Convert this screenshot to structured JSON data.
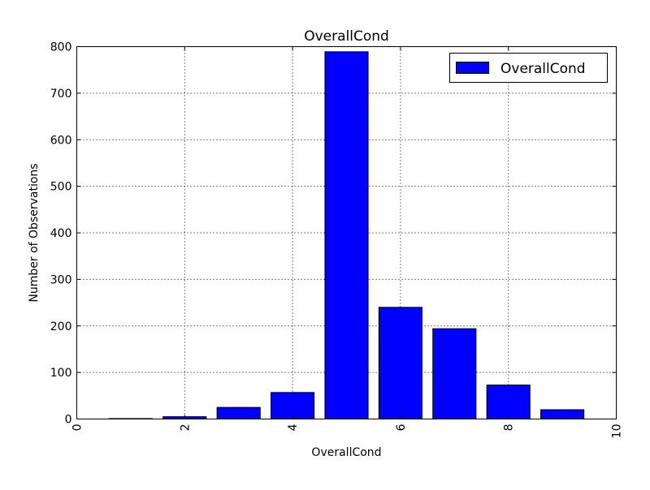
{
  "chart_data": {
    "type": "bar",
    "title": "OverallCond",
    "xlabel": "OverallCond",
    "ylabel": "Number of Observations",
    "x": [
      1,
      2,
      3,
      4,
      5,
      6,
      7,
      8,
      9
    ],
    "values": [
      1,
      5,
      25,
      57,
      789,
      240,
      194,
      73,
      20
    ],
    "xlim": [
      0,
      10
    ],
    "ylim": [
      0,
      800
    ],
    "xticks": [
      "0",
      "2",
      "4",
      "6",
      "8",
      "10"
    ],
    "yticks": [
      "0",
      "100",
      "200",
      "300",
      "400",
      "500",
      "600",
      "700",
      "800"
    ],
    "grid": true,
    "legend": {
      "position": "top-right",
      "entries": [
        "OverallCond"
      ]
    },
    "bar_color": "#0000ff",
    "edge_color": "#000000"
  }
}
